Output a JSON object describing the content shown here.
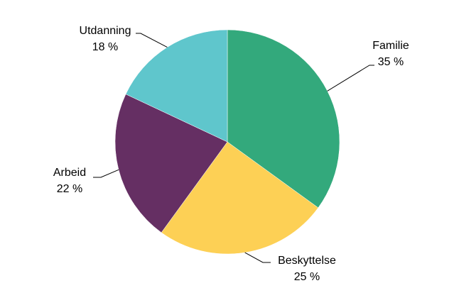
{
  "chart_data": {
    "type": "pie",
    "categories": [
      "Familie",
      "Beskyttelse",
      "Arbeid",
      "Utdanning"
    ],
    "values": [
      35,
      25,
      22,
      18
    ],
    "value_labels": [
      "35 %",
      "25 %",
      "22 %",
      "18 %"
    ],
    "colors": [
      "#33a97c",
      "#fdd055",
      "#652f63",
      "#5fc6cc"
    ]
  }
}
